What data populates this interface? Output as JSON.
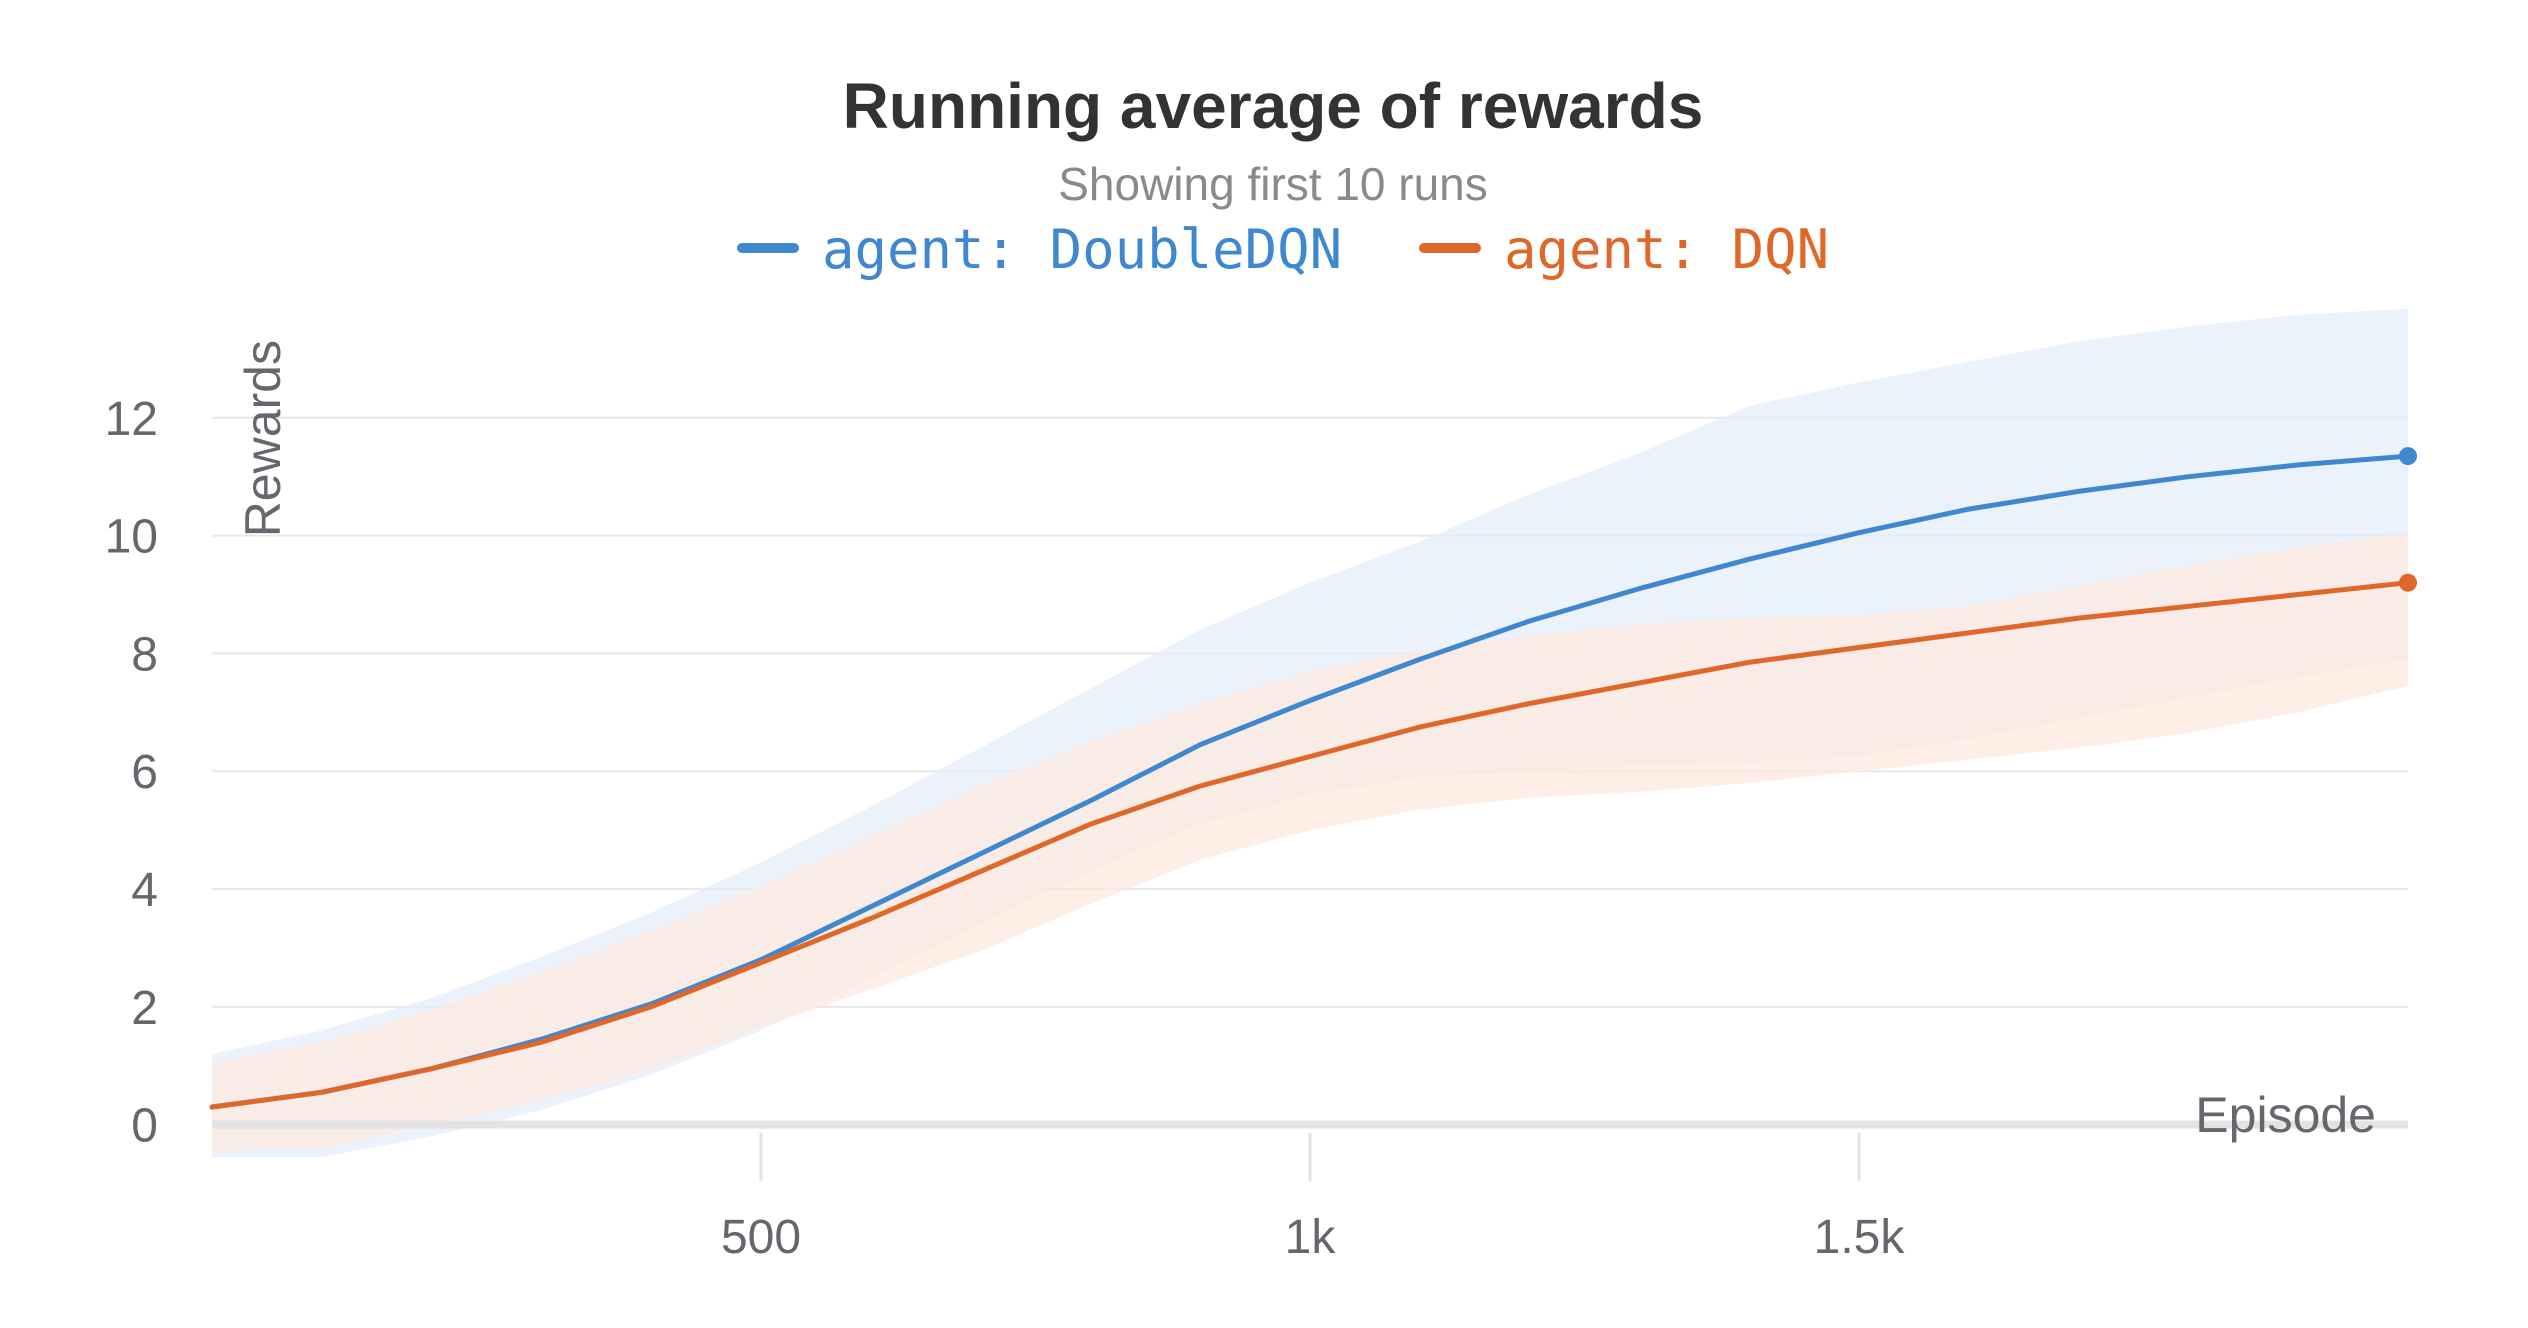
{
  "chart_data": {
    "type": "line",
    "title": "Running average of rewards",
    "subtitle": "Showing first 10 runs",
    "xlabel": "Episode",
    "ylabel": "Rewards",
    "xlim": [
      0,
      2000
    ],
    "ylim": [
      -0.6,
      14
    ],
    "x_ticks": [
      {
        "value": 500,
        "label": "500"
      },
      {
        "value": 1000,
        "label": "1k"
      },
      {
        "value": 1500,
        "label": "1.5k"
      }
    ],
    "y_ticks": [
      {
        "value": 0,
        "label": "0"
      },
      {
        "value": 2,
        "label": "2"
      },
      {
        "value": 4,
        "label": "4"
      },
      {
        "value": 6,
        "label": "6"
      },
      {
        "value": 8,
        "label": "8"
      },
      {
        "value": 10,
        "label": "10"
      },
      {
        "value": 12,
        "label": "12"
      }
    ],
    "grid": true,
    "legend_position": "top-center",
    "x": [
      0,
      100,
      200,
      300,
      400,
      500,
      600,
      700,
      800,
      900,
      1000,
      1100,
      1200,
      1300,
      1400,
      1500,
      1600,
      1700,
      1800,
      1900,
      2000
    ],
    "series": [
      {
        "name": "agent: DoubleDQN",
        "color": "#3f88d0",
        "band_color": "#e4eefb",
        "values": [
          0.3,
          0.55,
          0.95,
          1.45,
          2.05,
          2.8,
          3.7,
          4.6,
          5.5,
          6.45,
          7.2,
          7.9,
          8.55,
          9.1,
          9.6,
          10.05,
          10.45,
          10.75,
          11.0,
          11.2,
          11.35
        ],
        "upper": [
          1.2,
          1.6,
          2.15,
          2.85,
          3.6,
          4.45,
          5.4,
          6.4,
          7.4,
          8.4,
          9.2,
          9.9,
          10.7,
          11.4,
          12.2,
          12.6,
          12.95,
          13.3,
          13.55,
          13.75,
          13.85
        ],
        "lower": [
          -0.55,
          -0.55,
          -0.2,
          0.25,
          0.85,
          1.6,
          2.5,
          3.4,
          4.3,
          5.1,
          5.6,
          5.9,
          6.0,
          6.1,
          6.15,
          6.25,
          6.55,
          6.9,
          7.25,
          7.6,
          7.9
        ]
      },
      {
        "name": "agent: DQN",
        "color": "#de6729",
        "band_color": "#fde8de",
        "values": [
          0.3,
          0.55,
          0.95,
          1.4,
          2.0,
          2.75,
          3.5,
          4.3,
          5.1,
          5.75,
          6.25,
          6.75,
          7.15,
          7.5,
          7.85,
          8.1,
          8.35,
          8.6,
          8.8,
          9.0,
          9.2
        ],
        "upper": [
          1.05,
          1.4,
          1.95,
          2.6,
          3.3,
          4.05,
          4.9,
          5.75,
          6.5,
          7.15,
          7.7,
          8.05,
          8.3,
          8.5,
          8.6,
          8.65,
          8.8,
          9.15,
          9.5,
          9.8,
          10.05
        ],
        "lower": [
          -0.45,
          -0.4,
          0.0,
          0.4,
          0.95,
          1.65,
          2.3,
          2.95,
          3.75,
          4.5,
          5.0,
          5.35,
          5.55,
          5.65,
          5.8,
          6.0,
          6.2,
          6.4,
          6.65,
          7.0,
          7.45
        ]
      }
    ]
  }
}
